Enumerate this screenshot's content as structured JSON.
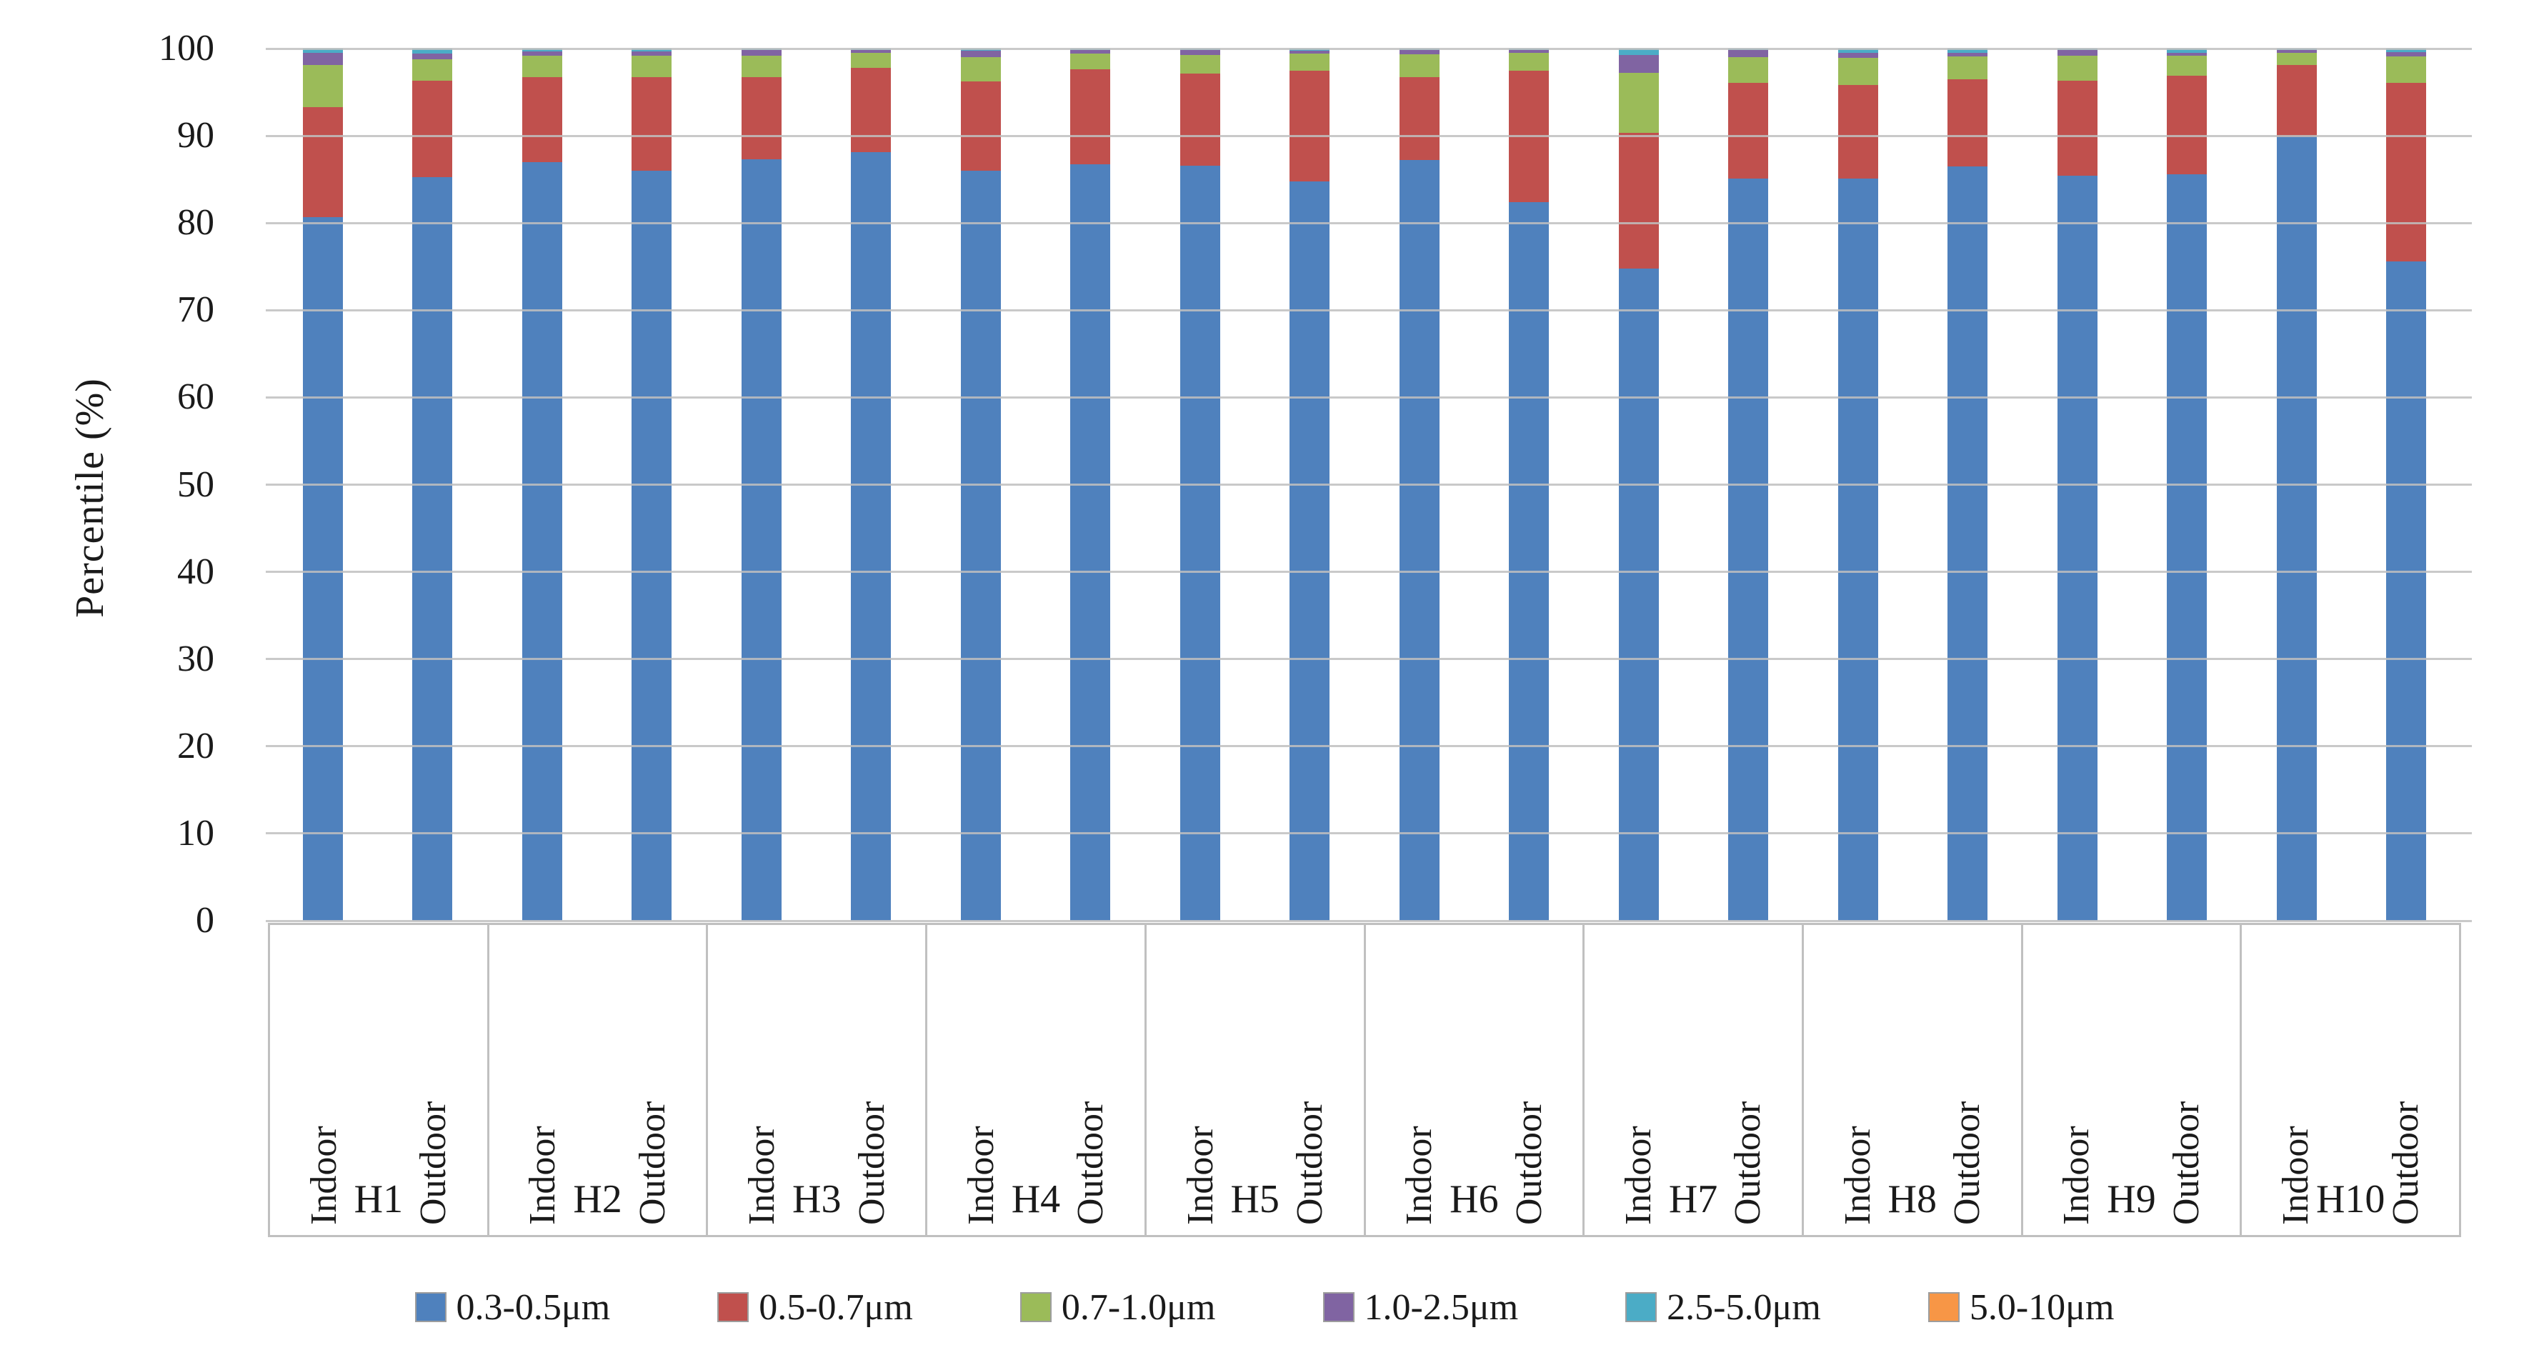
{
  "chart_data": {
    "type": "bar",
    "stacked": true,
    "title": "",
    "xlabel": "",
    "ylabel": "Percentile (%)",
    "ylim": [
      0,
      100
    ],
    "yticks": [
      0,
      10,
      20,
      30,
      40,
      50,
      60,
      70,
      80,
      90,
      100
    ],
    "grid": true,
    "gridlines_over_bars": true,
    "legend_position": "bottom",
    "groups": [
      "H1",
      "H2",
      "H3",
      "H4",
      "H5",
      "H6",
      "H7",
      "H8",
      "H9",
      "H10"
    ],
    "subcategories": [
      "Indoor",
      "Outdoor"
    ],
    "bars": [
      "H1 Indoor",
      "H1 Outdoor",
      "H2 Indoor",
      "H2 Outdoor",
      "H3 Indoor",
      "H3 Outdoor",
      "H4 Indoor",
      "H4 Outdoor",
      "H5 Indoor",
      "H5 Outdoor",
      "H6 Indoor",
      "H6 Outdoor",
      "H7 Indoor",
      "H7 Outdoor",
      "H8 Indoor",
      "H8 Outdoor",
      "H9 Indoor",
      "H9 Outdoor",
      "H10 Indoor",
      "H10 Outdoor"
    ],
    "series": [
      {
        "name": "0.3-0.5μm",
        "color": "#4F81BD",
        "values": [
          80.7,
          85.3,
          87.0,
          86.0,
          87.3,
          88.1,
          86.0,
          86.7,
          86.6,
          84.8,
          87.2,
          82.4,
          74.8,
          85.1,
          85.1,
          86.5,
          85.4,
          85.6,
          89.9,
          75.6
        ]
      },
      {
        "name": "0.5-0.7μm",
        "color": "#C0504D",
        "values": [
          12.6,
          11.0,
          9.7,
          10.7,
          9.4,
          9.7,
          10.2,
          10.9,
          10.5,
          12.7,
          9.5,
          15.1,
          15.5,
          11.0,
          10.7,
          10.0,
          10.9,
          11.3,
          8.2,
          20.5
        ]
      },
      {
        "name": "0.7-1.0μm",
        "color": "#9BBB59",
        "values": [
          4.8,
          2.5,
          2.5,
          2.5,
          2.5,
          1.7,
          2.8,
          1.85,
          2.2,
          1.9,
          2.65,
          2.0,
          6.9,
          2.9,
          3.1,
          2.6,
          2.9,
          2.3,
          1.4,
          3.0
        ]
      },
      {
        "name": "1.0-2.5μm",
        "color": "#8064A2",
        "values": [
          1.4,
          0.6,
          0.45,
          0.45,
          0.6,
          0.3,
          0.75,
          0.35,
          0.5,
          0.35,
          0.5,
          0.3,
          2.1,
          0.8,
          0.6,
          0.4,
          0.6,
          0.3,
          0.3,
          0.5
        ]
      },
      {
        "name": "2.5-5.0μm",
        "color": "#4BACC6",
        "values": [
          0.5,
          0.6,
          0.35,
          0.35,
          0.2,
          0.2,
          0.25,
          0.2,
          0.2,
          0.25,
          0.15,
          0.2,
          0.7,
          0.2,
          0.5,
          0.5,
          0.2,
          0.5,
          0.2,
          0.4
        ]
      },
      {
        "name": "5.0-10μm",
        "color": "#F79646",
        "values": [
          0,
          0,
          0,
          0,
          0,
          0,
          0,
          0,
          0,
          0,
          0,
          0,
          0,
          0,
          0,
          0,
          0,
          0,
          0,
          0
        ]
      }
    ]
  },
  "axis": {
    "y_title": "Percentile (%)"
  },
  "legend": {
    "items": [
      "0.3-0.5μm",
      "0.5-0.7μm",
      "0.7-1.0μm",
      "1.0-2.5μm",
      "2.5-5.0μm",
      "5.0-10μm"
    ]
  }
}
